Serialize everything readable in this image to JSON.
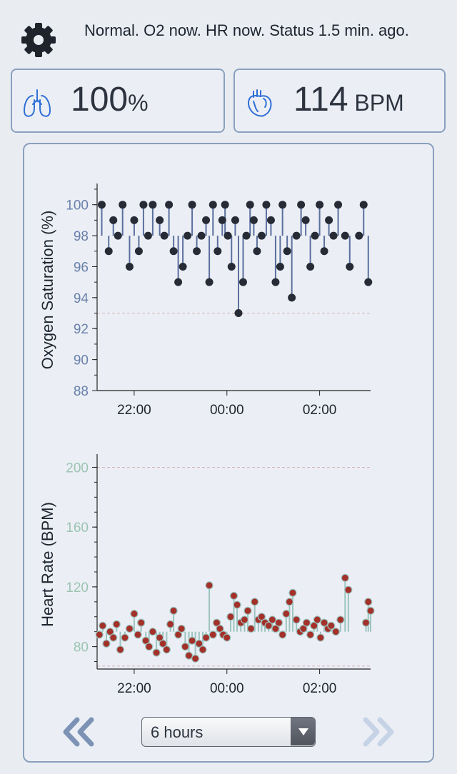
{
  "status": {
    "text": "Normal. O2 now. HR now. Status 1.5 min. ago.",
    "settings_icon": "gear-icon"
  },
  "tiles": {
    "o2": {
      "icon": "lungs-icon",
      "value": "100",
      "unit": "%"
    },
    "hr": {
      "icon": "heart-icon",
      "value": "114",
      "unit": " BPM"
    }
  },
  "controls": {
    "range_value": "6 hours",
    "prev_icon": "double-chevron-left-icon",
    "next_icon": "double-chevron-right-icon",
    "prev_color": "#7c93b6",
    "next_color": "#c6d3e6"
  },
  "colors": {
    "o2_point": "#262b35",
    "o2_stem": "#5b6f9e",
    "o2_axis_label": "#6a80ab",
    "hr_point": "#a4302a",
    "hr_stem": "#9cc4bf",
    "hr_axis_label": "#9cc4b2",
    "threshold": "#d7b3b9"
  },
  "chart_data": [
    {
      "type": "scatter",
      "ylabel": "Oxygen Saturation (%)",
      "xlabel": "",
      "ylim": [
        88,
        101
      ],
      "y_ticks": [
        "88",
        "90",
        "92",
        "94",
        "96",
        "98",
        "100"
      ],
      "x_ticks": [
        "22:00",
        "00:00",
        "02:00"
      ],
      "x_tick_hours": [
        22,
        24,
        26
      ],
      "xlim_hours": [
        21.2,
        27.1
      ],
      "baseline": 98,
      "threshold_lines": [
        93
      ],
      "series": [
        {
          "x": [
            21.3,
            21.45,
            21.55,
            21.65,
            21.75,
            21.9,
            22.0,
            22.1,
            22.2,
            22.3,
            22.4,
            22.55,
            22.65,
            22.75,
            22.85,
            22.95,
            23.05,
            23.15,
            23.25,
            23.35,
            23.45,
            23.55,
            23.62,
            23.7,
            23.8,
            23.9,
            23.96,
            24.02,
            24.1,
            24.18,
            24.25,
            24.35,
            24.42,
            24.5,
            24.58,
            24.65,
            24.75,
            24.85,
            24.95,
            25.05,
            25.15,
            25.2,
            25.3,
            25.4,
            25.5,
            25.6,
            25.7,
            25.8,
            25.9,
            26.0,
            26.1,
            26.2,
            26.3,
            26.4,
            26.55,
            26.65,
            26.85,
            26.95,
            27.05
          ],
          "y": [
            100,
            97,
            99,
            98,
            100,
            96,
            99,
            97,
            100,
            98,
            100,
            99,
            98,
            100,
            97,
            95,
            96,
            98,
            100,
            97,
            98,
            99,
            95,
            100,
            97,
            99,
            100,
            98,
            96,
            99,
            93,
            95,
            98,
            100,
            99,
            97,
            98,
            100,
            99,
            95,
            96,
            100,
            97,
            94,
            98,
            100,
            99,
            96,
            98,
            100,
            97,
            99,
            98,
            100,
            98,
            96,
            98,
            100,
            95
          ]
        }
      ]
    },
    {
      "type": "scatter",
      "ylabel": "Heart Rate (BPM)",
      "xlabel": "",
      "ylim": [
        65,
        205
      ],
      "y_ticks": [
        "80",
        "120",
        "160",
        "200"
      ],
      "x_ticks": [
        "22:00",
        "00:00",
        "02:00"
      ],
      "x_tick_hours": [
        22,
        24,
        26
      ],
      "xlim_hours": [
        21.2,
        27.1
      ],
      "baseline": 90,
      "threshold_lines": [
        200,
        67
      ],
      "series": [
        {
          "x": [
            21.25,
            21.32,
            21.4,
            21.48,
            21.55,
            21.62,
            21.7,
            21.8,
            21.9,
            22.0,
            22.08,
            22.15,
            22.25,
            22.32,
            22.4,
            22.48,
            22.55,
            22.62,
            22.7,
            22.78,
            22.85,
            22.95,
            23.02,
            23.1,
            23.18,
            23.25,
            23.32,
            23.4,
            23.48,
            23.55,
            23.62,
            23.7,
            23.78,
            23.85,
            23.92,
            24.0,
            24.08,
            24.15,
            24.22,
            24.3,
            24.38,
            24.45,
            24.52,
            24.6,
            24.68,
            24.75,
            24.82,
            24.9,
            24.98,
            25.05,
            25.12,
            25.2,
            25.28,
            25.35,
            25.42,
            25.5,
            25.58,
            25.65,
            25.72,
            25.8,
            25.88,
            25.95,
            26.02,
            26.1,
            26.18,
            26.25,
            26.35,
            26.45,
            26.55,
            26.62,
            27.0,
            27.05,
            27.1
          ],
          "y": [
            88,
            94,
            82,
            90,
            86,
            95,
            78,
            86,
            92,
            102,
            88,
            96,
            84,
            80,
            90,
            76,
            86,
            82,
            78,
            95,
            104,
            88,
            92,
            80,
            74,
            84,
            72,
            82,
            78,
            86,
            121,
            88,
            96,
            92,
            88,
            86,
            100,
            114,
            108,
            96,
            98,
            104,
            92,
            110,
            98,
            100,
            96,
            94,
            98,
            92,
            96,
            88,
            102,
            110,
            116,
            98,
            90,
            92,
            96,
            88,
            94,
            98,
            86,
            96,
            92,
            94,
            90,
            98,
            126,
            118,
            96,
            110,
            104
          ]
        }
      ]
    }
  ]
}
